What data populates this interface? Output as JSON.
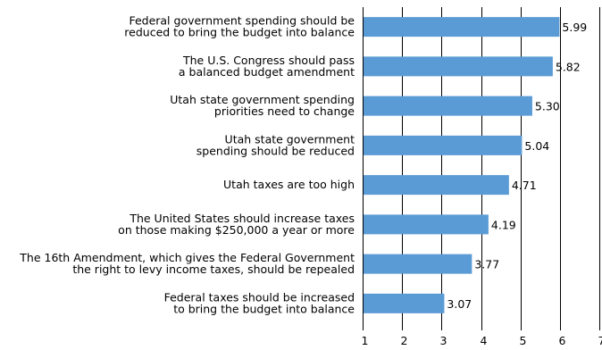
{
  "chart_data": {
    "type": "bar",
    "orientation": "horizontal",
    "categories": [
      [
        "Federal government spending should be",
        "reduced to bring the budget into balance"
      ],
      [
        "The U.S. Congress should pass",
        "a balanced budget amendment"
      ],
      [
        "Utah state government spending",
        "priorities need to change"
      ],
      [
        "Utah state government",
        "spending should be reduced"
      ],
      [
        "Utah taxes are too high"
      ],
      [
        "The United States should increase taxes",
        "on those making $250,000 a year or more"
      ],
      [
        "The 16th Amendment, which gives the Federal Government",
        "the right to levy income taxes, should be repealed"
      ],
      [
        "Federal taxes should be increased",
        "to bring the budget into balance"
      ]
    ],
    "values": [
      5.99,
      5.82,
      5.3,
      5.04,
      4.71,
      4.19,
      3.77,
      3.07
    ],
    "value_labels": [
      "5.99",
      "5.82",
      "5.30",
      "5.04",
      "4.71",
      "4.19",
      "3.77",
      "3.07"
    ],
    "x_ticks": [
      1,
      2,
      3,
      4,
      5,
      6,
      7
    ],
    "xlim": [
      1,
      7
    ],
    "grid": true,
    "bar_color": "#5b9bd5"
  }
}
